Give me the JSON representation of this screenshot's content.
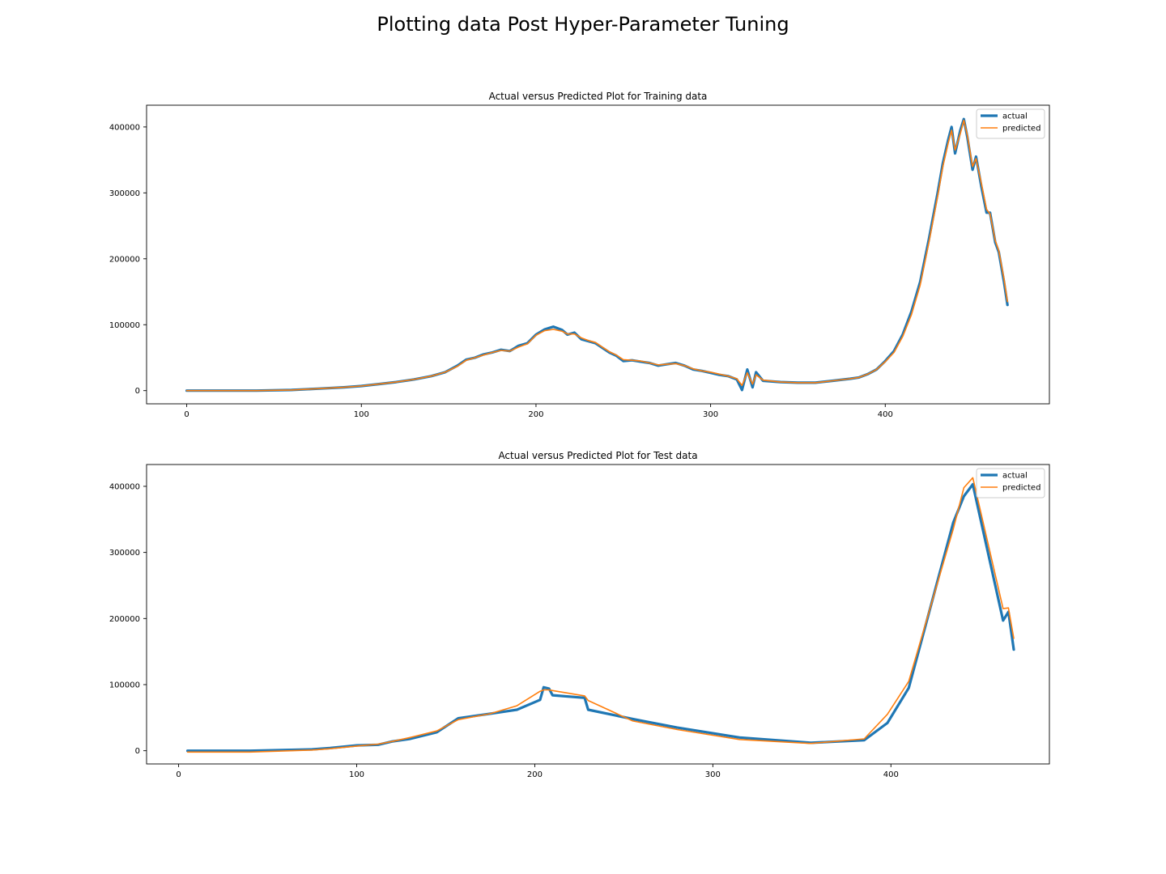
{
  "figure": {
    "suptitle": "Plotting data Post Hyper-Parameter Tuning"
  },
  "colors": {
    "actual": "#1f77b4",
    "predicted": "#ff7f0e"
  },
  "chart_data": [
    {
      "type": "line",
      "title": "Actual versus Predicted Plot for Training data",
      "xlabel": "",
      "ylabel": "",
      "xlim": [
        -23,
        494
      ],
      "ylim": [
        -20000,
        433000
      ],
      "xticks": [
        0,
        100,
        200,
        300,
        400
      ],
      "yticks": [
        0,
        100000,
        200000,
        300000,
        400000
      ],
      "xtick_labels": [
        "0",
        "100",
        "200",
        "300",
        "400"
      ],
      "ytick_labels": [
        "0",
        "100000",
        "200000",
        "300000",
        "400000"
      ],
      "legend": {
        "position": "top-right",
        "entries": [
          "actual",
          "predicted"
        ]
      },
      "series": [
        {
          "name": "actual",
          "x": [
            0,
            40,
            60,
            75,
            90,
            100,
            110,
            120,
            130,
            140,
            148,
            155,
            160,
            165,
            170,
            175,
            180,
            185,
            190,
            195,
            200,
            205,
            210,
            215,
            218,
            222,
            226,
            230,
            234,
            238,
            242,
            246,
            250,
            255,
            260,
            265,
            270,
            275,
            280,
            285,
            290,
            295,
            300,
            305,
            310,
            315,
            318,
            321,
            324,
            326,
            330,
            340,
            350,
            360,
            370,
            380,
            385,
            390,
            395,
            400,
            405,
            410,
            415,
            420,
            425,
            430,
            433,
            436,
            438,
            440,
            443,
            445,
            447,
            450,
            452,
            455,
            458,
            460,
            463,
            465,
            468,
            470
          ],
          "y": [
            0,
            0,
            1000,
            3000,
            5000,
            7000,
            10000,
            13000,
            17000,
            22000,
            28000,
            38000,
            47000,
            50000,
            55000,
            58000,
            62000,
            60000,
            68000,
            72000,
            85000,
            93000,
            97000,
            92000,
            85000,
            88000,
            78000,
            75000,
            72000,
            65000,
            58000,
            53000,
            45000,
            46000,
            44000,
            42000,
            38000,
            40000,
            42000,
            38000,
            32000,
            30000,
            27000,
            24000,
            22000,
            17000,
            1000,
            32000,
            5000,
            28000,
            15000,
            13000,
            12000,
            12000,
            15000,
            18000,
            20000,
            25000,
            32000,
            45000,
            60000,
            85000,
            120000,
            165000,
            230000,
            300000,
            345000,
            380000,
            400000,
            360000,
            395000,
            412000,
            385000,
            335000,
            355000,
            310000,
            270000,
            270000,
            225000,
            210000,
            165000,
            130000
          ]
        },
        {
          "name": "predicted",
          "x": [
            0,
            40,
            60,
            75,
            90,
            100,
            110,
            120,
            130,
            140,
            148,
            155,
            160,
            165,
            170,
            175,
            180,
            185,
            190,
            195,
            200,
            205,
            210,
            215,
            218,
            222,
            226,
            230,
            234,
            238,
            242,
            246,
            250,
            255,
            260,
            265,
            270,
            275,
            280,
            285,
            290,
            295,
            300,
            305,
            310,
            315,
            318,
            321,
            324,
            326,
            330,
            340,
            350,
            360,
            370,
            380,
            385,
            390,
            395,
            400,
            405,
            410,
            415,
            420,
            425,
            430,
            433,
            436,
            438,
            440,
            443,
            445,
            447,
            450,
            452,
            455,
            458,
            460,
            463,
            465,
            468,
            470
          ],
          "y": [
            0,
            0,
            1000,
            3000,
            5000,
            7000,
            10000,
            13000,
            17000,
            22000,
            28000,
            37000,
            46000,
            50000,
            54000,
            58000,
            61000,
            60000,
            66000,
            71000,
            84000,
            91000,
            93000,
            90000,
            86000,
            86000,
            80000,
            76000,
            73000,
            66000,
            59000,
            54000,
            47000,
            46000,
            45000,
            42000,
            39000,
            40000,
            41000,
            38000,
            33000,
            30000,
            28000,
            25000,
            22000,
            18000,
            8000,
            27000,
            10000,
            24000,
            16000,
            13000,
            12000,
            12000,
            15000,
            18000,
            20000,
            25000,
            32000,
            44000,
            58000,
            82000,
            115000,
            160000,
            225000,
            295000,
            340000,
            375000,
            395000,
            365000,
            390000,
            410000,
            388000,
            340000,
            352000,
            315000,
            275000,
            268000,
            228000,
            212000,
            170000,
            135000
          ]
        }
      ]
    },
    {
      "type": "line",
      "title": "Actual versus Predicted Plot for Test data",
      "xlabel": "",
      "ylabel": "",
      "xlim": [
        -18,
        489
      ],
      "ylim": [
        -20000,
        433000
      ],
      "xticks": [
        0,
        100,
        200,
        300,
        400
      ],
      "yticks": [
        0,
        100000,
        200000,
        300000,
        400000
      ],
      "xtick_labels": [
        "0",
        "100",
        "200",
        "300",
        "400"
      ],
      "ytick_labels": [
        "0",
        "100000",
        "200000",
        "300000",
        "400000"
      ],
      "legend": {
        "position": "top-right",
        "entries": [
          "actual",
          "predicted"
        ]
      },
      "series": [
        {
          "name": "actual",
          "x": [
            5,
            40,
            75,
            85,
            100,
            112,
            120,
            130,
            145,
            157,
            175,
            190,
            203,
            205,
            208,
            210,
            228,
            230,
            255,
            280,
            315,
            355,
            385,
            398,
            410,
            435,
            441,
            446,
            463,
            466,
            469
          ],
          "y": [
            0,
            0,
            2000,
            4000,
            8000,
            9000,
            14000,
            18000,
            28000,
            49000,
            56000,
            62000,
            77000,
            96000,
            94000,
            84000,
            80000,
            62000,
            48000,
            35000,
            20000,
            12000,
            16000,
            42000,
            95000,
            345000,
            385000,
            403000,
            197000,
            210000,
            153000
          ]
        },
        {
          "name": "predicted",
          "x": [
            5,
            40,
            75,
            85,
            100,
            112,
            120,
            130,
            145,
            157,
            175,
            190,
            203,
            205,
            208,
            210,
            228,
            230,
            255,
            280,
            315,
            355,
            385,
            398,
            410,
            435,
            441,
            446,
            463,
            466,
            469
          ],
          "y": [
            -2000,
            -2000,
            1000,
            3000,
            7000,
            10000,
            14000,
            20000,
            30000,
            47000,
            56000,
            68000,
            90000,
            92000,
            92000,
            91000,
            83000,
            76000,
            45000,
            32000,
            17000,
            11000,
            18000,
            55000,
            105000,
            335000,
            398000,
            413000,
            215000,
            216000,
            170000
          ]
        }
      ]
    }
  ]
}
